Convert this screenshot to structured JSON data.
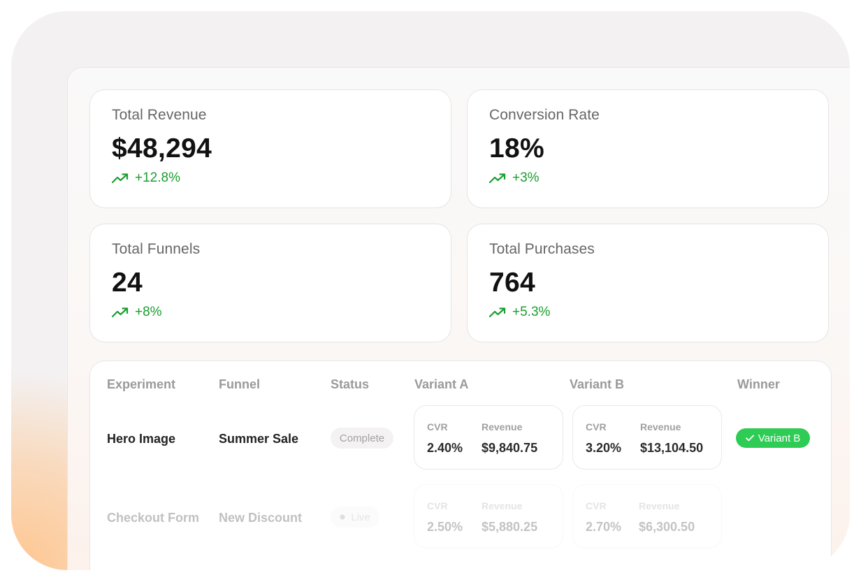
{
  "stats": [
    {
      "label": "Total Revenue",
      "value": "$48,294",
      "change": "+12.8%"
    },
    {
      "label": "Conversion Rate",
      "value": "18%",
      "change": "+3%"
    },
    {
      "label": "Total Funnels",
      "value": "24",
      "change": "+8%"
    },
    {
      "label": "Total Purchases",
      "value": "764",
      "change": "+5.3%"
    }
  ],
  "table": {
    "headers": {
      "experiment": "Experiment",
      "funnel": "Funnel",
      "status": "Status",
      "variant_a": "Variant A",
      "variant_b": "Variant B",
      "winner": "Winner"
    },
    "rows": [
      {
        "experiment": "Hero Image",
        "funnel": "Summer Sale",
        "status": "Complete",
        "variant_a": {
          "cvr_label": "CVR",
          "revenue_label": "Revenue",
          "cvr": "2.40%",
          "revenue": "$9,840.75"
        },
        "variant_b": {
          "cvr_label": "CVR",
          "revenue_label": "Revenue",
          "cvr": "3.20%",
          "revenue": "$13,104.50"
        },
        "winner": "Variant B"
      },
      {
        "experiment": "Checkout Form",
        "funnel": "New Discount",
        "status": "Live",
        "variant_a": {
          "cvr_label": "CVR",
          "revenue_label": "Revenue",
          "cvr": "2.50%",
          "revenue": "$5,880.25"
        },
        "variant_b": {
          "cvr_label": "CVR",
          "revenue_label": "Revenue",
          "cvr": "2.70%",
          "revenue": "$6,300.50"
        },
        "winner": ""
      }
    ]
  },
  "icons": {
    "trend": "trending-up-icon",
    "check": "check-icon",
    "dot": "status-dot-icon"
  },
  "colors": {
    "positive": "#1a9e2e",
    "winner_badge": "#2ecc55",
    "accent_glow": "#fec690"
  }
}
